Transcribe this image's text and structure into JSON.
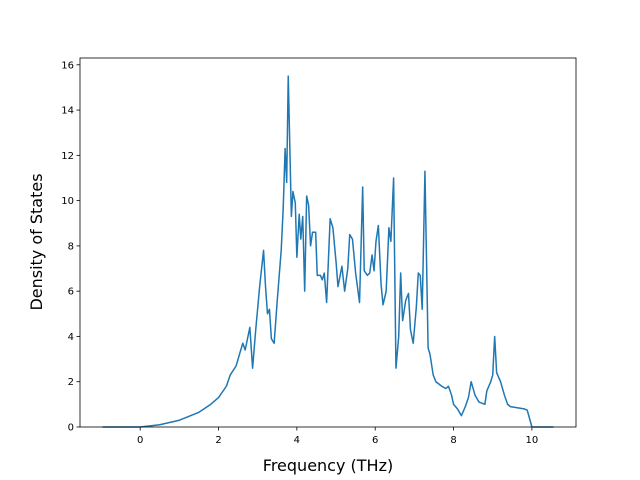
{
  "chart_data": {
    "type": "line",
    "xlabel": "Frequency (THz)",
    "ylabel": "Density of States",
    "color": "#1f77b4",
    "xlim": [
      -1.536,
      11.126
    ],
    "ylim": [
      0,
      16.3
    ],
    "xticks": [
      0,
      2,
      4,
      6,
      8,
      10
    ],
    "yticks": [
      0,
      2,
      4,
      6,
      8,
      10,
      12,
      14,
      16
    ],
    "x": [
      -0.96,
      0,
      0.5,
      1,
      1.5,
      1.8,
      2.0,
      2.2,
      2.3,
      2.45,
      2.55,
      2.62,
      2.68,
      2.8,
      2.87,
      2.95,
      3.05,
      3.15,
      3.2,
      3.25,
      3.3,
      3.35,
      3.42,
      3.5,
      3.6,
      3.65,
      3.7,
      3.74,
      3.78,
      3.86,
      3.9,
      3.96,
      4.0,
      4.06,
      4.1,
      4.15,
      4.2,
      4.25,
      4.3,
      4.35,
      4.4,
      4.48,
      4.52,
      4.6,
      4.65,
      4.7,
      4.76,
      4.85,
      4.92,
      5.0,
      5.05,
      5.15,
      5.22,
      5.3,
      5.35,
      5.42,
      5.5,
      5.6,
      5.68,
      5.72,
      5.8,
      5.86,
      5.92,
      5.97,
      6.02,
      6.08,
      6.15,
      6.2,
      6.28,
      6.35,
      6.4,
      6.47,
      6.53,
      6.6,
      6.65,
      6.7,
      6.78,
      6.85,
      6.9,
      6.97,
      7.05,
      7.1,
      7.15,
      7.2,
      7.27,
      7.35,
      7.4,
      7.48,
      7.55,
      7.7,
      7.8,
      7.87,
      7.95,
      8.0,
      8.1,
      8.2,
      8.3,
      8.38,
      8.45,
      8.55,
      8.65,
      8.8,
      8.85,
      8.95,
      9.0,
      9.05,
      9.1,
      9.2,
      9.3,
      9.38,
      9.45,
      9.8,
      9.88,
      9.92,
      10.0,
      10.55
    ],
    "values": [
      0,
      0,
      0.1,
      0.3,
      0.65,
      1.0,
      1.3,
      1.8,
      2.3,
      2.7,
      3.3,
      3.7,
      3.4,
      4.4,
      2.6,
      4.3,
      6.2,
      7.8,
      6.2,
      5.0,
      5.2,
      3.9,
      3.7,
      5.6,
      7.8,
      9.6,
      12.3,
      10.8,
      15.5,
      9.3,
      10.4,
      9.9,
      7.5,
      9.4,
      8.3,
      9.3,
      6.0,
      10.2,
      9.8,
      8.0,
      8.6,
      8.6,
      6.7,
      6.7,
      6.5,
      6.8,
      5.5,
      9.2,
      8.8,
      7.3,
      6.2,
      7.1,
      6.0,
      7.0,
      8.5,
      8.3,
      6.8,
      5.5,
      10.6,
      6.9,
      6.7,
      6.8,
      7.6,
      6.9,
      8.2,
      8.9,
      6.3,
      5.4,
      6.0,
      8.8,
      8.2,
      11.0,
      2.6,
      4.0,
      6.8,
      4.7,
      5.6,
      5.9,
      4.3,
      3.7,
      5.3,
      6.8,
      6.7,
      5.2,
      11.3,
      3.5,
      3.2,
      2.3,
      2.0,
      1.8,
      1.7,
      1.8,
      1.4,
      1.0,
      0.8,
      0.5,
      0.9,
      1.3,
      2.0,
      1.4,
      1.1,
      1.0,
      1.6,
      2.0,
      2.3,
      4.0,
      2.4,
      2.0,
      1.4,
      1.0,
      0.9,
      0.8,
      0.75,
      0.5,
      0,
      0
    ]
  }
}
